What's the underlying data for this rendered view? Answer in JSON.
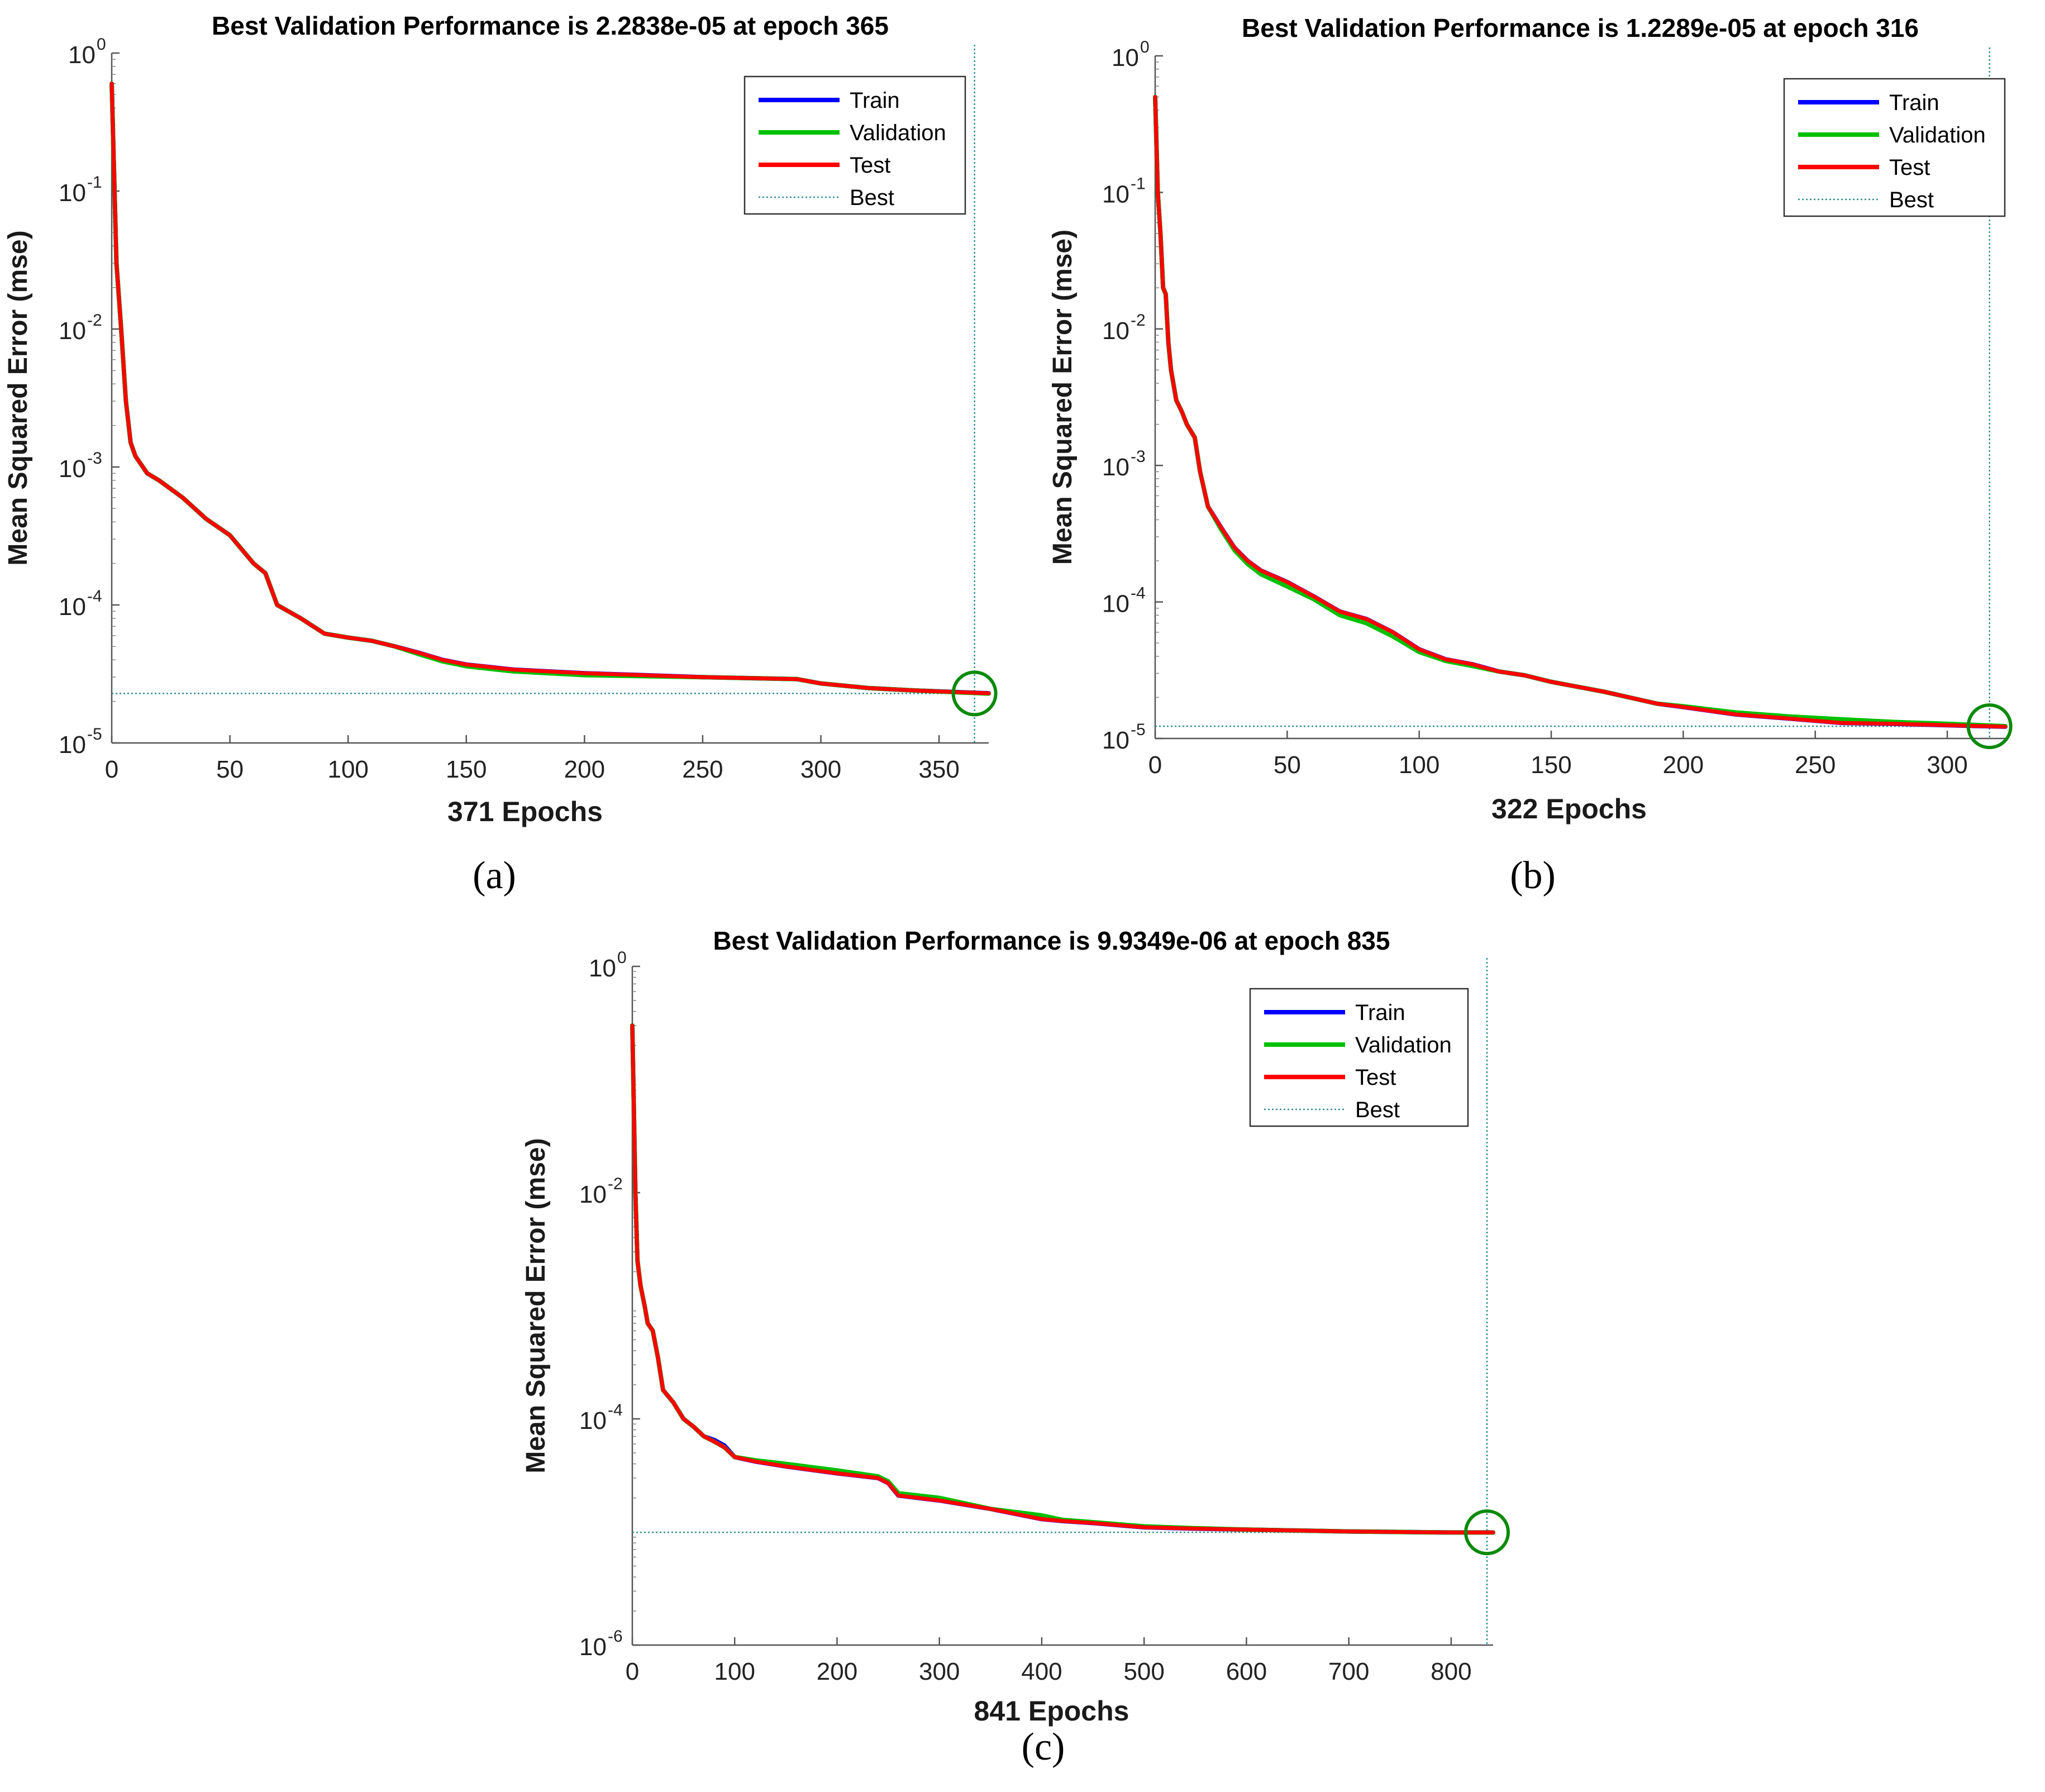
{
  "chart_data": [
    {
      "type": "line",
      "panel_label": "(a)",
      "title": "Best Validation Performance is 2.2838e-05 at epoch 365",
      "xlabel": "371 Epochs",
      "ylabel": "Mean Squared Error  (mse)",
      "yscale": "log",
      "xlim": [
        0,
        371
      ],
      "ylim": [
        1e-05,
        1
      ],
      "xticks": [
        0,
        50,
        100,
        150,
        200,
        250,
        300,
        350
      ],
      "xtick_labels": [
        "0",
        "50",
        "100",
        "150",
        "200",
        "250",
        "300",
        "350"
      ],
      "yticks": [
        1,
        0.1,
        0.01,
        0.001,
        0.0001,
        1e-05
      ],
      "ytick_labels": [
        {
          "base": "10",
          "exp": "0"
        },
        {
          "base": "10",
          "exp": "-1"
        },
        {
          "base": "10",
          "exp": "-2"
        },
        {
          "base": "10",
          "exp": "-3"
        },
        {
          "base": "10",
          "exp": "-4"
        },
        {
          "base": "10",
          "exp": "-5"
        }
      ],
      "legend": {
        "position": "top-right",
        "entries": [
          "Train",
          "Validation",
          "Test",
          "Best"
        ]
      },
      "best": {
        "epoch": 365,
        "value": 2.2838e-05
      },
      "series": [
        {
          "name": "Train",
          "color": "#0000ff",
          "x": [
            0,
            2,
            4,
            6,
            8,
            10,
            15,
            20,
            30,
            40,
            50,
            60,
            65,
            70,
            80,
            90,
            100,
            110,
            120,
            130,
            140,
            150,
            170,
            200,
            250,
            290,
            300,
            320,
            340,
            371
          ],
          "y": [
            0.6,
            0.03,
            0.01,
            0.003,
            0.0015,
            0.0012,
            0.0009,
            0.0008,
            0.0006,
            0.00042,
            0.00032,
            0.0002,
            0.00017,
            0.0001,
            8e-05,
            6.2e-05,
            5.8e-05,
            5.5e-05,
            5e-05,
            4.5e-05,
            4e-05,
            3.7e-05,
            3.4e-05,
            3.2e-05,
            3e-05,
            2.9e-05,
            2.7e-05,
            2.5e-05,
            2.4e-05,
            2.29e-05
          ]
        },
        {
          "name": "Validation",
          "color": "#00c000",
          "x": [
            0,
            2,
            4,
            6,
            8,
            10,
            15,
            20,
            30,
            40,
            50,
            60,
            65,
            70,
            80,
            90,
            100,
            110,
            120,
            130,
            140,
            150,
            170,
            200,
            250,
            290,
            300,
            320,
            340,
            371
          ],
          "y": [
            0.6,
            0.03,
            0.01,
            0.003,
            0.0015,
            0.0012,
            0.0009,
            0.0008,
            0.0006,
            0.00042,
            0.00032,
            0.0002,
            0.00017,
            0.0001,
            8e-05,
            6.2e-05,
            5.8e-05,
            5.5e-05,
            5e-05,
            4.4e-05,
            3.9e-05,
            3.6e-05,
            3.3e-05,
            3.1e-05,
            3e-05,
            2.9e-05,
            2.7e-05,
            2.5e-05,
            2.4e-05,
            2.28e-05
          ]
        },
        {
          "name": "Test",
          "color": "#ff0000",
          "x": [
            0,
            2,
            4,
            6,
            8,
            10,
            15,
            20,
            30,
            40,
            50,
            60,
            65,
            70,
            80,
            90,
            100,
            110,
            120,
            130,
            140,
            150,
            170,
            200,
            250,
            290,
            300,
            320,
            340,
            371
          ],
          "y": [
            0.6,
            0.03,
            0.01,
            0.003,
            0.0015,
            0.0012,
            0.0009,
            0.0008,
            0.0006,
            0.00042,
            0.00032,
            0.0002,
            0.00017,
            0.0001,
            8e-05,
            6.2e-05,
            5.8e-05,
            5.5e-05,
            5e-05,
            4.5e-05,
            4e-05,
            3.7e-05,
            3.4e-05,
            3.2e-05,
            3e-05,
            2.9e-05,
            2.7e-05,
            2.5e-05,
            2.4e-05,
            2.29e-05
          ]
        }
      ]
    },
    {
      "type": "line",
      "panel_label": "(b)",
      "title": "Best Validation Performance is 1.2289e-05 at epoch 316",
      "xlabel": "322 Epochs",
      "ylabel": "Mean Squared Error  (mse)",
      "yscale": "log",
      "xlim": [
        0,
        322
      ],
      "ylim": [
        1e-05,
        1
      ],
      "xticks": [
        0,
        50,
        100,
        150,
        200,
        250,
        300
      ],
      "xtick_labels": [
        "0",
        "50",
        "100",
        "150",
        "200",
        "250",
        "300"
      ],
      "yticks": [
        1,
        0.1,
        0.01,
        0.001,
        0.0001,
        1e-05
      ],
      "ytick_labels": [
        {
          "base": "10",
          "exp": "0"
        },
        {
          "base": "10",
          "exp": "-1"
        },
        {
          "base": "10",
          "exp": "-2"
        },
        {
          "base": "10",
          "exp": "-3"
        },
        {
          "base": "10",
          "exp": "-4"
        },
        {
          "base": "10",
          "exp": "-5"
        }
      ],
      "legend": {
        "position": "top-right",
        "entries": [
          "Train",
          "Validation",
          "Test",
          "Best"
        ]
      },
      "best": {
        "epoch": 316,
        "value": 1.2289e-05
      },
      "series": [
        {
          "name": "Train",
          "color": "#0000ff",
          "x": [
            0,
            1,
            2,
            3,
            4,
            5,
            6,
            8,
            10,
            12,
            15,
            17,
            20,
            25,
            30,
            35,
            40,
            50,
            60,
            70,
            80,
            90,
            100,
            110,
            120,
            130,
            140,
            150,
            170,
            190,
            200,
            220,
            240,
            260,
            280,
            300,
            322
          ],
          "y": [
            0.5,
            0.1,
            0.05,
            0.02,
            0.018,
            0.008,
            0.005,
            0.003,
            0.0025,
            0.002,
            0.0016,
            0.0009,
            0.0005,
            0.00035,
            0.00025,
            0.0002,
            0.00017,
            0.00014,
            0.00011,
            8.5e-05,
            7.5e-05,
            6e-05,
            4.5e-05,
            3.8e-05,
            3.5e-05,
            3.1e-05,
            2.9e-05,
            2.6e-05,
            2.2e-05,
            1.8e-05,
            1.7e-05,
            1.5e-05,
            1.4e-05,
            1.3e-05,
            1.28e-05,
            1.25e-05,
            1.22e-05
          ]
        },
        {
          "name": "Validation",
          "color": "#00c000",
          "x": [
            0,
            1,
            2,
            3,
            4,
            5,
            6,
            8,
            10,
            12,
            15,
            17,
            20,
            25,
            30,
            35,
            40,
            50,
            60,
            70,
            80,
            90,
            100,
            110,
            120,
            130,
            140,
            150,
            170,
            190,
            200,
            220,
            240,
            260,
            280,
            300,
            322
          ],
          "y": [
            0.5,
            0.1,
            0.05,
            0.02,
            0.018,
            0.008,
            0.005,
            0.003,
            0.0025,
            0.002,
            0.0016,
            0.0009,
            0.0005,
            0.00034,
            0.00024,
            0.00019,
            0.00016,
            0.00013,
            0.000105,
            8e-05,
            7e-05,
            5.6e-05,
            4.3e-05,
            3.7e-05,
            3.4e-05,
            3.1e-05,
            2.9e-05,
            2.6e-05,
            2.2e-05,
            1.8e-05,
            1.72e-05,
            1.55e-05,
            1.45e-05,
            1.38e-05,
            1.32e-05,
            1.28e-05,
            1.23e-05
          ]
        },
        {
          "name": "Test",
          "color": "#ff0000",
          "x": [
            0,
            1,
            2,
            3,
            4,
            5,
            6,
            8,
            10,
            12,
            15,
            17,
            20,
            25,
            30,
            35,
            40,
            50,
            60,
            70,
            80,
            90,
            100,
            110,
            120,
            130,
            140,
            150,
            170,
            190,
            200,
            220,
            240,
            260,
            280,
            300,
            322
          ],
          "y": [
            0.5,
            0.1,
            0.05,
            0.02,
            0.018,
            0.008,
            0.005,
            0.003,
            0.0025,
            0.002,
            0.0016,
            0.0009,
            0.0005,
            0.00035,
            0.00025,
            0.0002,
            0.00017,
            0.00014,
            0.00011,
            8.5e-05,
            7.5e-05,
            6e-05,
            4.5e-05,
            3.8e-05,
            3.5e-05,
            3.1e-05,
            2.9e-05,
            2.6e-05,
            2.2e-05,
            1.8e-05,
            1.7e-05,
            1.5e-05,
            1.4e-05,
            1.3e-05,
            1.28e-05,
            1.25e-05,
            1.22e-05
          ]
        }
      ]
    },
    {
      "type": "line",
      "panel_label": "(c)",
      "title": "Best Validation Performance is 9.9349e-06 at epoch 835",
      "xlabel": "841 Epochs",
      "ylabel": "Mean Squared Error  (mse)",
      "yscale": "log",
      "xlim": [
        0,
        841
      ],
      "ylim": [
        1e-06,
        1
      ],
      "xticks": [
        0,
        100,
        200,
        300,
        400,
        500,
        600,
        700,
        800
      ],
      "xtick_labels": [
        "0",
        "100",
        "200",
        "300",
        "400",
        "500",
        "600",
        "700",
        "800"
      ],
      "yticks": [
        1,
        0.01,
        0.0001,
        1e-06
      ],
      "ytick_labels": [
        {
          "base": "10",
          "exp": "0"
        },
        {
          "base": "10",
          "exp": "-2"
        },
        {
          "base": "10",
          "exp": "-4"
        },
        {
          "base": "10",
          "exp": "-6"
        }
      ],
      "legend": {
        "position": "top-right",
        "entries": [
          "Train",
          "Validation",
          "Test",
          "Best"
        ]
      },
      "best": {
        "epoch": 835,
        "value": 9.9349e-06
      },
      "series": [
        {
          "name": "Train",
          "color": "#0000ff",
          "x": [
            0,
            3,
            5,
            8,
            12,
            15,
            20,
            25,
            30,
            40,
            50,
            60,
            70,
            80,
            90,
            100,
            120,
            150,
            200,
            240,
            250,
            260,
            300,
            350,
            400,
            420,
            450,
            500,
            550,
            600,
            650,
            700,
            750,
            800,
            841
          ],
          "y": [
            0.3,
            0.01,
            0.0025,
            0.0015,
            0.001,
            0.0007,
            0.0006,
            0.00035,
            0.00018,
            0.00014,
            0.0001,
            8.5e-05,
            7e-05,
            6.5e-05,
            5.8e-05,
            4.6e-05,
            4.2e-05,
            3.8e-05,
            3.3e-05,
            3e-05,
            2.7e-05,
            2.1e-05,
            1.9e-05,
            1.6e-05,
            1.3e-05,
            1.25e-05,
            1.2e-05,
            1.1e-05,
            1.07e-05,
            1.05e-05,
            1.03e-05,
            1.01e-05,
            1e-05,
            9.9e-06,
            9.9e-06
          ]
        },
        {
          "name": "Validation",
          "color": "#00c000",
          "x": [
            0,
            3,
            5,
            8,
            12,
            15,
            20,
            25,
            30,
            40,
            50,
            60,
            70,
            80,
            90,
            100,
            120,
            150,
            200,
            240,
            250,
            260,
            300,
            350,
            400,
            420,
            450,
            500,
            550,
            600,
            650,
            700,
            750,
            800,
            841
          ],
          "y": [
            0.3,
            0.01,
            0.0025,
            0.0015,
            0.001,
            0.0007,
            0.0006,
            0.00035,
            0.00018,
            0.00014,
            0.0001,
            8.5e-05,
            7e-05,
            6.3e-05,
            5.6e-05,
            4.6e-05,
            4.3e-05,
            4e-05,
            3.5e-05,
            3.1e-05,
            2.8e-05,
            2.2e-05,
            2e-05,
            1.6e-05,
            1.4e-05,
            1.28e-05,
            1.22e-05,
            1.12e-05,
            1.08e-05,
            1.05e-05,
            1.03e-05,
            1.01e-05,
            1e-05,
            9.9e-06,
            9.9e-06
          ]
        },
        {
          "name": "Test",
          "color": "#ff0000",
          "x": [
            0,
            3,
            5,
            8,
            12,
            15,
            20,
            25,
            30,
            40,
            50,
            60,
            70,
            80,
            90,
            100,
            120,
            150,
            200,
            240,
            250,
            260,
            300,
            350,
            400,
            420,
            450,
            500,
            550,
            600,
            650,
            700,
            750,
            800,
            841
          ],
          "y": [
            0.3,
            0.01,
            0.0025,
            0.0015,
            0.001,
            0.0007,
            0.0006,
            0.00035,
            0.00018,
            0.00014,
            0.0001,
            8.5e-05,
            7e-05,
            6.3e-05,
            5.6e-05,
            4.6e-05,
            4.2e-05,
            3.8e-05,
            3.3e-05,
            3e-05,
            2.7e-05,
            2.1e-05,
            1.9e-05,
            1.6e-05,
            1.3e-05,
            1.25e-05,
            1.2e-05,
            1.1e-05,
            1.07e-05,
            1.05e-05,
            1.03e-05,
            1.01e-05,
            1e-05,
            9.9e-06,
            9.9e-06
          ]
        }
      ]
    }
  ]
}
